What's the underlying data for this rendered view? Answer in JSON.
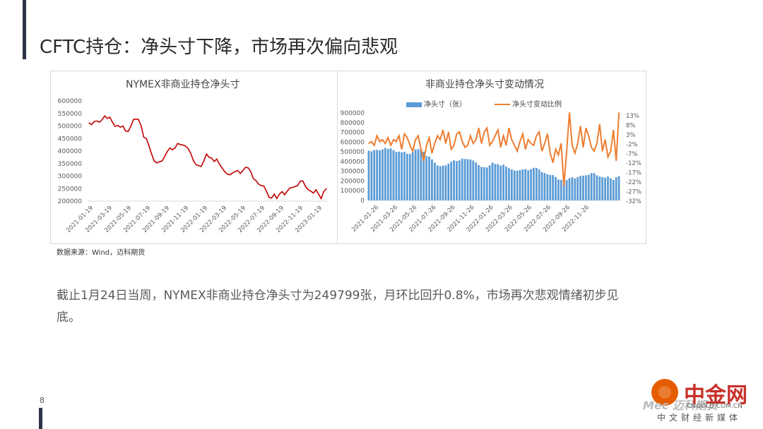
{
  "page": {
    "title": "CFTC持仓：净头寸下降，市场再次偏向悲观",
    "source": "数据来源：Wind，迈科期货",
    "summary": "截止1月24日当周，NYMEX非商业持仓净头寸为249799张，月环比回升0.8%，市场再次悲观情绪初步见底。",
    "page_number": "8"
  },
  "watermark": {
    "name": "中金网",
    "url": "CNGOLD.COM.CN",
    "slogan": "中文财经新媒体",
    "ghost": "Mec 迈科期货"
  },
  "chart_data": [
    {
      "type": "line",
      "title": "NYMEX非商业持仓净头寸",
      "color": "#c00000",
      "ylim": [
        200000,
        600000
      ],
      "yticks": [
        "600000",
        "550000",
        "500000",
        "450000",
        "400000",
        "350000",
        "300000",
        "250000",
        "200000"
      ],
      "xticks": [
        "2021-01-19",
        "2021-03-19",
        "2021-05-19",
        "2021-07-19",
        "2021-09-19",
        "2021-11-19",
        "2022-01-19",
        "2022-03-19",
        "2022-05-19",
        "2022-07-19",
        "2022-09-19",
        "2022-11-19",
        "2023-01-19"
      ],
      "y": [
        512000,
        505000,
        518000,
        520000,
        515000,
        525000,
        540000,
        530000,
        535000,
        515000,
        498000,
        502000,
        495000,
        500000,
        480000,
        478000,
        498000,
        525000,
        528000,
        525000,
        500000,
        455000,
        450000,
        420000,
        388000,
        360000,
        352000,
        357000,
        360000,
        378000,
        398000,
        412000,
        405000,
        412000,
        430000,
        426000,
        424000,
        420000,
        410000,
        390000,
        362000,
        345000,
        342000,
        338000,
        360000,
        388000,
        375000,
        372000,
        358000,
        368000,
        348000,
        332000,
        318000,
        308000,
        305000,
        312000,
        318000,
        322000,
        310000,
        322000,
        335000,
        333000,
        318000,
        290000,
        282000,
        268000,
        262000,
        260000,
        240000,
        215000,
        212000,
        228000,
        210000,
        228000,
        238000,
        225000,
        240000,
        252000,
        255000,
        258000,
        262000,
        280000,
        280000,
        258000,
        245000,
        240000,
        232000,
        245000,
        228000,
        210000,
        238000,
        249799
      ]
    },
    {
      "type": "bar+line",
      "title": "非商业持仓净头寸变动情况",
      "legend": [
        "净头寸（张）",
        "净头寸变动比例"
      ],
      "bar_color": "#5b9bd5",
      "line_color": "#ed7d31",
      "ylim": [
        0,
        900000
      ],
      "yticks": [
        "900000",
        "800000",
        "700000",
        "600000",
        "500000",
        "400000",
        "300000",
        "200000",
        "100000",
        "0"
      ],
      "y2ticks": [
        "13%",
        "8%",
        "3%",
        "-2%",
        "-7%",
        "-12%",
        "-17%",
        "-22%",
        "-27%",
        "-32%"
      ],
      "y2lim": [
        -0.32,
        0.15
      ],
      "xticks": [
        "2021-01-26",
        "2021-03-26",
        "2021-05-26",
        "2021-07-26",
        "2021-09-26",
        "2021-11-26",
        "2022-01-26",
        "2022-03-26",
        "2022-05-26",
        "2022-07-26",
        "2022-09-26",
        "2022-11-26"
      ],
      "bars": [
        512000,
        505000,
        518000,
        520000,
        515000,
        525000,
        540000,
        530000,
        535000,
        515000,
        498000,
        502000,
        495000,
        500000,
        480000,
        478000,
        498000,
        525000,
        528000,
        525000,
        500000,
        455000,
        450000,
        420000,
        388000,
        360000,
        352000,
        357000,
        360000,
        378000,
        398000,
        412000,
        405000,
        412000,
        430000,
        426000,
        424000,
        420000,
        410000,
        390000,
        362000,
        345000,
        342000,
        338000,
        360000,
        388000,
        375000,
        372000,
        358000,
        368000,
        348000,
        332000,
        318000,
        308000,
        305000,
        312000,
        318000,
        322000,
        310000,
        322000,
        335000,
        333000,
        318000,
        290000,
        282000,
        268000,
        262000,
        260000,
        240000,
        215000,
        212000,
        228000,
        210000,
        228000,
        238000,
        225000,
        240000,
        252000,
        255000,
        258000,
        262000,
        280000,
        280000,
        258000,
        245000,
        240000,
        232000,
        245000,
        228000,
        210000,
        238000,
        249799
      ],
      "line": [
        -0.02,
        -0.01,
        -0.03,
        0.02,
        -0.01,
        0.0,
        -0.02,
        0.01,
        -0.03,
        0.0,
        -0.01,
        0.02,
        -0.05,
        0.03,
        0.01,
        -0.03,
        -0.06,
        0.0,
        0.02,
        -0.05,
        -0.11,
        -0.03,
        0.01,
        -0.07,
        -0.02,
        0.02,
        0.0,
        0.05,
        -0.02,
        0.04,
        -0.05,
        -0.03,
        0.03,
        0.04,
        -0.01,
        -0.04,
        -0.03,
        0.02,
        -0.02,
        0.0,
        0.06,
        -0.02,
        0.04,
        0.06,
        -0.03,
        -0.01,
        0.02,
        0.05,
        -0.04,
        0.02,
        -0.03,
        0.06,
        0.0,
        -0.03,
        -0.06,
        -0.01,
        0.03,
        -0.05,
        0.0,
        -0.02,
        -0.03,
        0.02,
        0.04,
        -0.06,
        -0.02,
        0.03,
        -0.07,
        -0.12,
        -0.05,
        -0.08,
        -0.02,
        -0.24,
        -0.06,
        0.14,
        -0.03,
        -0.07,
        -0.02,
        0.07,
        -0.04,
        0.06,
        0.02,
        -0.04,
        -0.06,
        -0.02,
        0.08,
        -0.06,
        0.0,
        -0.09,
        -0.06,
        0.05,
        -0.11,
        0.14
      ]
    }
  ]
}
